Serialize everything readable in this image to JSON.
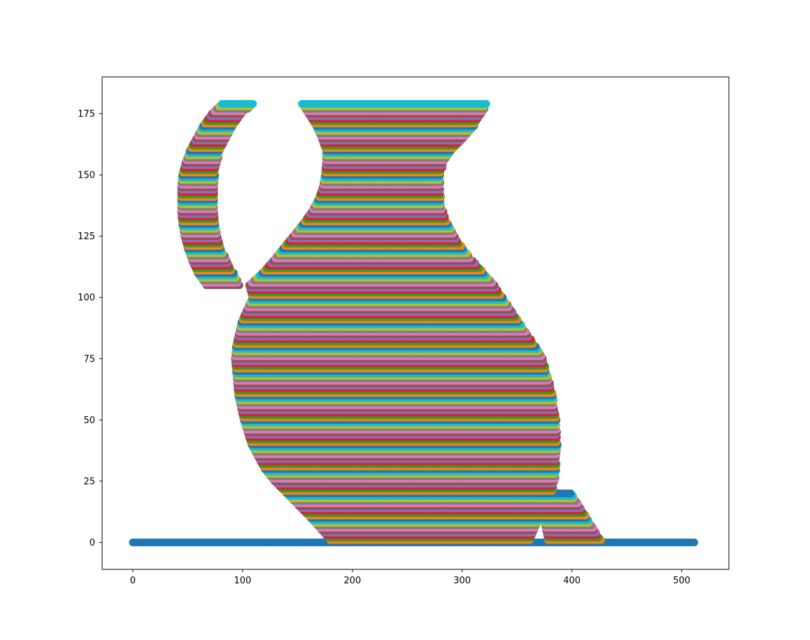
{
  "chart_data": {
    "type": "scatter",
    "title": "",
    "xlabel": "",
    "ylabel": "",
    "xlim": [
      -28,
      543
    ],
    "ylim": [
      -11,
      190
    ],
    "x_ticks": [
      0,
      100,
      200,
      300,
      400,
      500
    ],
    "y_ticks": [
      0,
      25,
      50,
      75,
      100,
      125,
      150,
      175
    ],
    "grid": false,
    "legend": "none",
    "colors": [
      "#1f77b4",
      "#ff7f0e",
      "#2ca02c",
      "#d62728",
      "#9467bd",
      "#8c564b",
      "#e377c2",
      "#7f7f7f",
      "#bcbd22",
      "#17becf"
    ],
    "description_of_series": "One scatter series per y level (y = 0..179, step 1); each series is a horizontal run of points spanning the silhouette width at that height; the baseline y=0 spans x 0 to 512",
    "series_spans": {
      "y_levels": [
        0,
        10,
        20,
        25,
        30,
        40,
        50,
        60,
        70,
        75,
        80,
        90,
        100,
        105,
        110,
        115,
        120,
        125,
        130,
        135,
        140,
        145,
        150,
        155,
        160,
        165,
        170,
        175,
        179
      ],
      "body_left": [
        182,
        162,
        140,
        129,
        120,
        108,
        101,
        96,
        94,
        93,
        94,
        99,
        109,
        106,
        118,
        128,
        137,
        146,
        155,
        163,
        169,
        173,
        175,
        176,
        176,
        172,
        167,
        160,
        154
      ],
      "body_right": [
        361,
        371,
        382,
        385,
        386,
        387,
        386,
        383,
        377,
        374,
        367,
        352,
        337,
        330,
        320,
        310,
        301,
        293,
        287,
        283,
        281,
        280,
        281,
        283,
        290,
        301,
        311,
        318,
        323
      ],
      "handle_left": [
        null,
        null,
        null,
        null,
        null,
        null,
        null,
        null,
        null,
        null,
        null,
        null,
        null,
        67,
        59,
        54,
        50,
        47,
        45,
        44,
        44,
        44,
        45,
        48,
        52,
        58,
        64,
        72,
        81
      ],
      "handle_right": [
        null,
        null,
        null,
        null,
        null,
        null,
        null,
        null,
        null,
        null,
        null,
        null,
        null,
        98,
        92,
        86,
        81,
        78,
        76,
        75,
        74,
        74,
        75,
        77,
        80,
        85,
        92,
        100,
        110
      ],
      "foot_left": [
        379,
        374,
        369,
        null,
        null,
        null,
        null,
        null,
        null,
        null,
        null,
        null,
        null,
        null,
        null,
        null,
        null,
        null,
        null,
        null,
        null,
        null,
        null,
        null,
        null,
        null,
        null,
        null,
        null
      ],
      "foot_right": [
        428,
        414,
        400,
        null,
        null,
        null,
        null,
        null,
        null,
        null,
        null,
        null,
        null,
        null,
        null,
        null,
        null,
        null,
        null,
        null,
        null,
        null,
        null,
        null,
        null,
        null,
        null,
        null,
        null
      ],
      "baseline": [
        0,
        512
      ]
    }
  }
}
